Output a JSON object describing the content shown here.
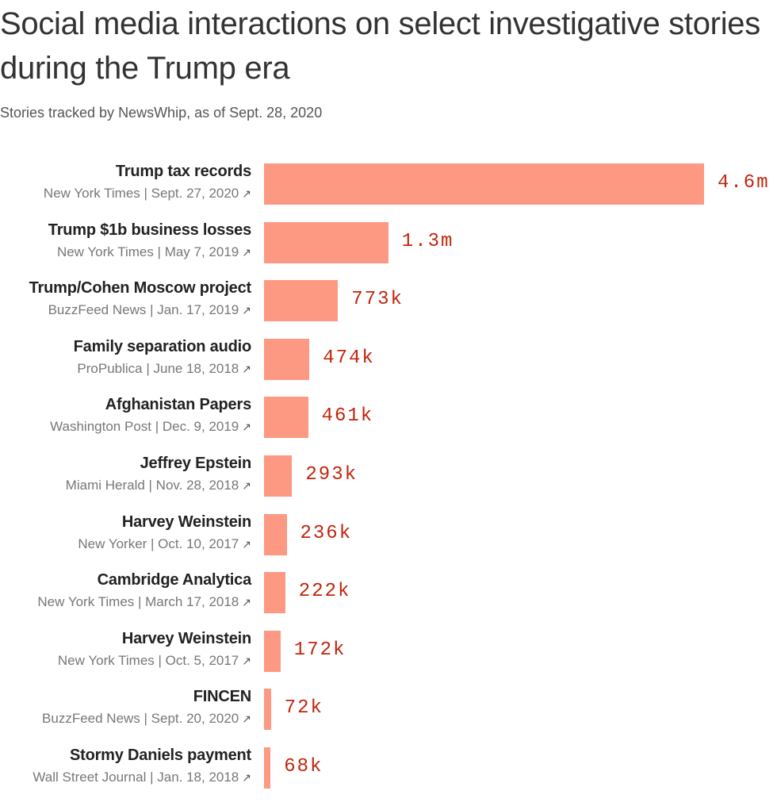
{
  "title": "Social media interactions on select investigative stories during the Trump era",
  "subtitle": "Stories tracked by NewsWhip, as of Sept. 28, 2020",
  "colors": {
    "bar": "#fd9882",
    "value_label": "#c0260d",
    "title_text": "#333333",
    "source_text": "#777777"
  },
  "icons": {
    "external_link": "arrow-up-right-icon"
  },
  "chart_data": {
    "type": "bar",
    "orientation": "horizontal",
    "title": "Social media interactions on select investigative stories during the Trump era",
    "subtitle": "Stories tracked by NewsWhip, as of Sept. 28, 2020",
    "categories": [
      "Trump tax records",
      "Trump $1b business losses",
      "Trump/Cohen Moscow project",
      "Family separation audio",
      "Afghanistan Papers",
      "Jeffrey Epstein",
      "Harvey Weinstein",
      "Cambridge Analytica",
      "Harvey Weinstein",
      "FINCEN",
      "Stormy Daniels payment"
    ],
    "sources": [
      "New York Times | Sept. 27, 2020",
      "New York Times | May 7, 2019",
      "BuzzFeed News | Jan. 17, 2019",
      "ProPublica | June 18, 2018",
      "Washington Post | Dec. 9, 2019",
      "Miami Herald | Nov. 28, 2018",
      "New Yorker | Oct. 10, 2017",
      "New York Times | March 17, 2018",
      "New York Times | Oct. 5, 2017",
      "BuzzFeed News | Sept. 20, 2020",
      "Wall Street Journal | Jan. 18, 2018"
    ],
    "values": [
      4600000,
      1300000,
      773000,
      474000,
      461000,
      293000,
      236000,
      222000,
      172000,
      72000,
      68000
    ],
    "value_labels": [
      "4.6m",
      "1.3m",
      "773k",
      "474k",
      "461k",
      "293k",
      "236k",
      "222k",
      "172k",
      "72k",
      "68k"
    ],
    "xlim": [
      0,
      4600000
    ],
    "grid": false,
    "legend": "none"
  }
}
